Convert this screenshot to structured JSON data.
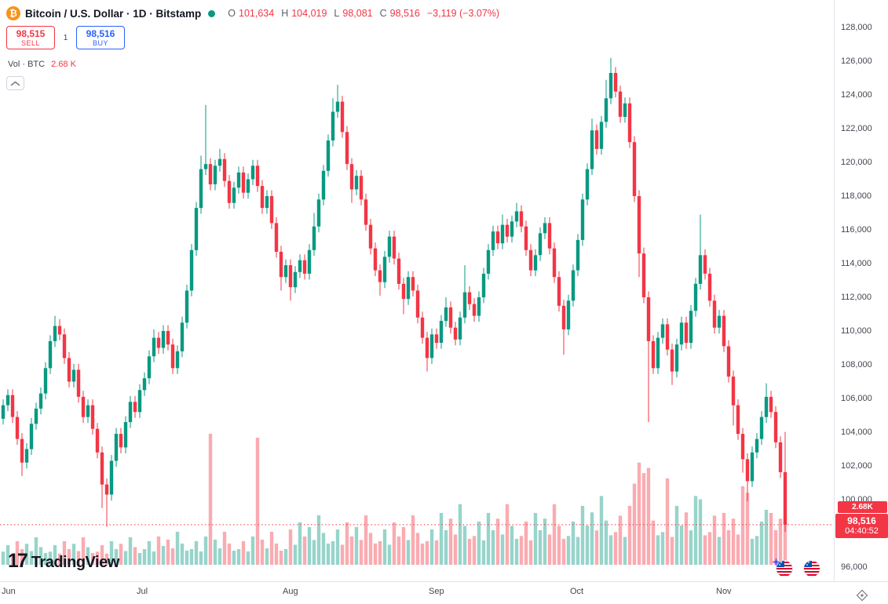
{
  "header": {
    "btc_glyph": "₿",
    "symbol_title": "Bitcoin / U.S. Dollar · 1D · Bitstamp",
    "ohlc": {
      "o_label": "O",
      "o": "101,634",
      "h_label": "H",
      "h": "104,019",
      "l_label": "L",
      "l": "98,081",
      "c_label": "C",
      "c": "98,516",
      "change": "−3,119 (−3.07%)"
    },
    "sell": {
      "price": "98,515",
      "label": "SELL"
    },
    "spread": "1",
    "buy": {
      "price": "98,516",
      "label": "BUY"
    },
    "volume_row": {
      "label": "Vol · BTC",
      "value": "2.68 K"
    }
  },
  "price_label": {
    "volume": "2.68K",
    "price": "98,516",
    "countdown": "04:40:52"
  },
  "logo": {
    "mark": "17",
    "text": "TradingView"
  },
  "colors": {
    "up": "#089981",
    "down": "#f23645",
    "buy_blue": "#2962ff",
    "brand_orange": "#f7931a",
    "axis_text": "#434651",
    "grid": "#e0e3eb",
    "label_bg": "#f23645"
  },
  "chart_data": {
    "type": "candlestick",
    "symbol": "Bitcoin / U.S. Dollar",
    "exchange": "Bitstamp",
    "interval": "1D",
    "unit": "USD, series values in thousands",
    "ylim": [
      96000,
      128000
    ],
    "price_ticks": [
      128000,
      126000,
      124000,
      122000,
      120000,
      118000,
      116000,
      114000,
      112000,
      110000,
      108000,
      106000,
      104000,
      102000,
      100000,
      96000
    ],
    "months": [
      "Jun",
      "Jul",
      "Aug",
      "Sep",
      "Oct",
      "Nov"
    ],
    "month_start_indices": [
      0,
      30,
      61,
      92,
      122,
      153
    ],
    "first_open_k": 104.8,
    "default_wick_k": 0.35,
    "closes_k": [
      105.6,
      106.2,
      104.9,
      103.6,
      102.2,
      103.0,
      104.5,
      105.4,
      106.3,
      107.8,
      109.4,
      110.3,
      109.8,
      108.4,
      107.0,
      107.7,
      106.1,
      104.9,
      105.6,
      104.2,
      102.8,
      100.9,
      100.3,
      102.3,
      103.9,
      103.1,
      104.6,
      105.8,
      105.2,
      106.5,
      107.2,
      108.5,
      109.6,
      109.0,
      110.0,
      109.2,
      107.8,
      108.8,
      110.5,
      112.4,
      114.8,
      117.3,
      119.6,
      119.9,
      118.7,
      119.8,
      120.2,
      118.9,
      117.6,
      118.5,
      119.4,
      118.2,
      119.0,
      119.8,
      118.6,
      117.3,
      118.0,
      116.4,
      114.7,
      113.2,
      113.9,
      112.6,
      113.5,
      114.2,
      113.4,
      114.8,
      116.2,
      117.8,
      119.5,
      121.3,
      123.0,
      123.6,
      121.8,
      119.9,
      118.4,
      119.2,
      117.8,
      116.3,
      114.9,
      113.6,
      112.9,
      114.4,
      115.6,
      114.3,
      112.8,
      111.9,
      113.2,
      112.4,
      110.8,
      109.6,
      108.4,
      109.8,
      109.3,
      110.6,
      111.4,
      110.2,
      109.5,
      110.8,
      112.3,
      111.6,
      110.9,
      112.0,
      113.4,
      114.8,
      115.9,
      115.2,
      116.3,
      115.6,
      116.5,
      117.1,
      116.2,
      114.8,
      113.6,
      114.5,
      115.8,
      116.4,
      114.9,
      113.2,
      111.5,
      110.1,
      111.8,
      113.6,
      115.4,
      117.8,
      119.6,
      121.9,
      120.8,
      122.4,
      123.8,
      125.3,
      124.2,
      122.7,
      123.5,
      121.2,
      118.0,
      114.6,
      112.0,
      109.4,
      107.8,
      109.6,
      110.4,
      108.9,
      107.6,
      109.2,
      110.5,
      109.3,
      111.2,
      112.8,
      114.5,
      113.4,
      111.8,
      110.2,
      110.9,
      109.1,
      107.3,
      105.6,
      103.9,
      102.4,
      101.1,
      102.8,
      103.6,
      104.9,
      106.1,
      105.2,
      103.4,
      101.634,
      98.516
    ],
    "special_highs_k": {
      "11": 110.9,
      "12": 110.7,
      "32": 110.1,
      "42": 120.4,
      "43": 123.4,
      "46": 120.8,
      "66": 117.0,
      "70": 123.8,
      "71": 124.6,
      "94": 112.0,
      "98": 113.9,
      "106": 116.9,
      "109": 117.6,
      "125": 122.6,
      "128": 124.9,
      "129": 126.2,
      "148": 116.9,
      "162": 106.9,
      "166": 104.019
    },
    "special_lows_k": {
      "4": 101.4,
      "21": 99.5,
      "22": 98.4,
      "59": 112.4,
      "61": 111.8,
      "74": 117.6,
      "80": 112.1,
      "85": 111.0,
      "90": 107.6,
      "119": 108.6,
      "135": 113.2,
      "137": 104.6,
      "142": 106.8,
      "155": 104.4,
      "157": 101.6,
      "158": 99.9,
      "166": 98.081
    },
    "last_candle": {
      "open": 101634,
      "high": 104019,
      "low": 98081,
      "close": 98516
    },
    "current_price": 98516,
    "change": -3119,
    "change_pct": -3.07,
    "current_volume_btc_k": 2.68,
    "volume_base_rel": [
      0.2,
      0.3,
      0.17,
      0.36,
      0.24,
      0.32,
      0.21,
      0.42,
      0.27,
      0.18
    ],
    "volume_month_mult": [
      0.5,
      0.6,
      0.9,
      1.1,
      1.25,
      1.1
    ],
    "volume_spikes_rel": {
      "44": 1.0,
      "54": 0.97,
      "134": 0.62,
      "135": 0.78,
      "136": 0.7,
      "137": 0.74,
      "141": 0.66,
      "148": 0.5,
      "157": 0.6,
      "158": 0.55,
      "162": 0.42,
      "166": 0.33
    }
  }
}
